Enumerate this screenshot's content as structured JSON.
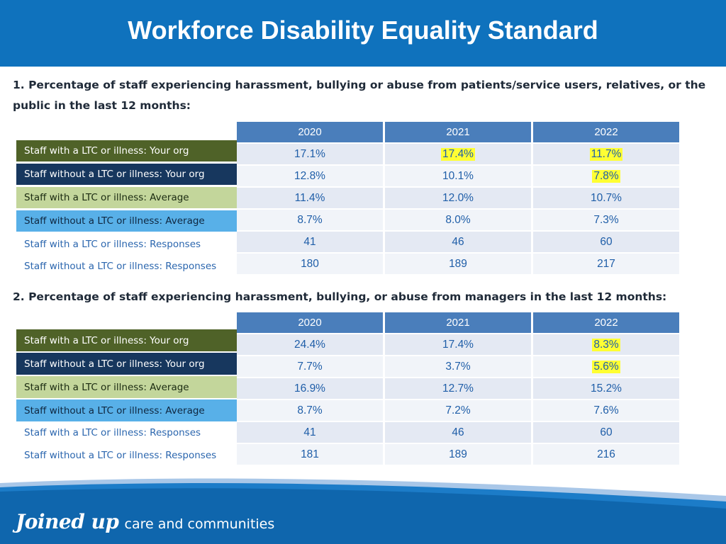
{
  "header": {
    "title": "Workforce Disability Equality Standard"
  },
  "section1": {
    "title": "1. Percentage of staff experiencing harassment, bullying or abuse from patients/service users, relatives, or the public in the last 12 months:",
    "columns": [
      "2020",
      "2021",
      "2022"
    ],
    "rows": [
      {
        "label": "Staff with a LTC or illness: Your org",
        "label_color": "#4f6228",
        "values": [
          "17.1%",
          "17.4%",
          "11.7%"
        ],
        "highlight": [
          false,
          true,
          true
        ]
      },
      {
        "label": "Staff without a LTC or illness: Your org",
        "label_color": "#17375e",
        "values": [
          "12.8%",
          "10.1%",
          "7.8%"
        ],
        "highlight": [
          false,
          false,
          true
        ]
      },
      {
        "label": "Staff with a LTC or illness: Average",
        "label_color": "#c3d69b",
        "values": [
          "11.4%",
          "12.0%",
          "10.7%"
        ],
        "highlight": [
          false,
          false,
          false
        ]
      },
      {
        "label": "Staff without a LTC or illness: Average",
        "label_color": "#58b0e8",
        "values": [
          "8.7%",
          "8.0%",
          "7.3%"
        ],
        "highlight": [
          false,
          false,
          false
        ]
      },
      {
        "label": "Staff with a LTC or illness: Responses",
        "label_color": "#ffffff",
        "values": [
          "41",
          "46",
          "60"
        ],
        "highlight": [
          false,
          false,
          false
        ]
      },
      {
        "label": "Staff without a LTC or illness: Responses",
        "label_color": "#ffffff",
        "values": [
          "180",
          "189",
          "217"
        ],
        "highlight": [
          false,
          false,
          false
        ]
      }
    ]
  },
  "section2": {
    "title": "2. Percentage of staff experiencing harassment, bullying, or abuse from managers in the last 12 months:",
    "columns": [
      "2020",
      "2021",
      "2022"
    ],
    "rows": [
      {
        "label": "Staff with a LTC or illness: Your org",
        "label_color": "#4f6228",
        "values": [
          "24.4%",
          "17.4%",
          "8.3%"
        ],
        "highlight": [
          false,
          false,
          true
        ]
      },
      {
        "label": "Staff without a LTC or illness: Your org",
        "label_color": "#17375e",
        "values": [
          "7.7%",
          "3.7%",
          "5.6%"
        ],
        "highlight": [
          false,
          false,
          true
        ]
      },
      {
        "label": "Staff with a LTC or illness: Average",
        "label_color": "#c3d69b",
        "values": [
          "16.9%",
          "12.7%",
          "15.2%"
        ],
        "highlight": [
          false,
          false,
          false
        ]
      },
      {
        "label": "Staff without a LTC or illness: Average",
        "label_color": "#58b0e8",
        "values": [
          "8.7%",
          "7.2%",
          "7.6%"
        ],
        "highlight": [
          false,
          false,
          false
        ]
      },
      {
        "label": "Staff with a LTC or illness: Responses",
        "label_color": "#ffffff",
        "values": [
          "41",
          "46",
          "60"
        ],
        "highlight": [
          false,
          false,
          false
        ]
      },
      {
        "label": "Staff without a LTC or illness: Responses",
        "label_color": "#ffffff",
        "values": [
          "181",
          "189",
          "216"
        ],
        "highlight": [
          false,
          false,
          false
        ]
      }
    ]
  },
  "highlight_color": "#ffff33",
  "footer": {
    "brand": "Joined up",
    "tagline": "care and communities"
  }
}
